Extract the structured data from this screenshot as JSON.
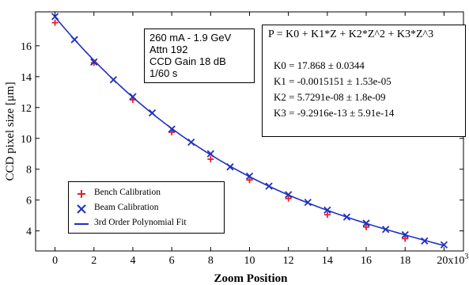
{
  "chart_data": {
    "type": "scatter",
    "xlabel": "Zoom Position",
    "ylabel": "CCD pixel size [μm]",
    "xlim": [
      -1000,
      21000
    ],
    "ylim": [
      2.7,
      18.2
    ],
    "x_ticks": [
      0,
      2000,
      4000,
      6000,
      8000,
      10000,
      12000,
      14000,
      16000,
      18000,
      20000
    ],
    "x_tick_labels": [
      "0",
      "2",
      "4",
      "6",
      "8",
      "10",
      "12",
      "14",
      "16",
      "18",
      "20x10"
    ],
    "x_tick_exponent": "3",
    "y_ticks": [
      4,
      6,
      8,
      10,
      12,
      14,
      16
    ],
    "y_tick_labels": [
      "4",
      "6",
      "8",
      "10",
      "12",
      "14",
      "16"
    ],
    "grid": false,
    "legend_position": "bottom-left",
    "series": [
      {
        "name": "Bench Calibration",
        "marker": "plus",
        "color": "#e8202a",
        "x": [
          0,
          2000,
          4000,
          6000,
          8000,
          10000,
          12000,
          14000,
          16000,
          18000
        ],
        "y": [
          17.5,
          14.9,
          12.5,
          10.4,
          8.65,
          7.3,
          6.1,
          5.05,
          4.25,
          3.5
        ]
      },
      {
        "name": "Beam Calibration",
        "marker": "x",
        "color": "#2030c0",
        "x": [
          0,
          1000,
          2000,
          3000,
          4000,
          5000,
          6000,
          7000,
          8000,
          9000,
          10000,
          11000,
          12000,
          13000,
          14000,
          15000,
          16000,
          17000,
          18000,
          19000,
          20000
        ],
        "y": [
          17.9,
          16.4,
          14.95,
          13.8,
          12.7,
          11.65,
          10.6,
          9.75,
          9.0,
          8.15,
          7.55,
          6.9,
          6.35,
          5.85,
          5.35,
          4.9,
          4.5,
          4.1,
          3.75,
          3.35,
          3.1
        ]
      },
      {
        "name": "3rd Order Polynomial Fit",
        "type": "line",
        "color": "#2030c0",
        "coefficients": [
          17.868,
          -0.0015151,
          5.7291e-08,
          -9.2916e-13
        ],
        "x_range": [
          0,
          20000
        ]
      }
    ]
  },
  "conditions": {
    "lines": [
      "260 mA - 1.9 GeV",
      "Attn 192",
      "CCD Gain 18 dB",
      "1/60 s"
    ]
  },
  "fit": {
    "equation": "P = K0 + K1*Z + K2*Z^2 + K3*Z^3",
    "params": [
      "K0 = 17.868 ± 0.0344",
      "K1 = -0.0015151 ± 1.53e-05",
      "K2 = 5.7291e-08 ± 1.8e-09",
      "K3 = -9.2916e-13 ± 5.91e-14"
    ]
  },
  "colors": {
    "bench": "#e8202a",
    "beam": "#2030c0",
    "fit": "#2030c0",
    "axis": "#000000"
  }
}
